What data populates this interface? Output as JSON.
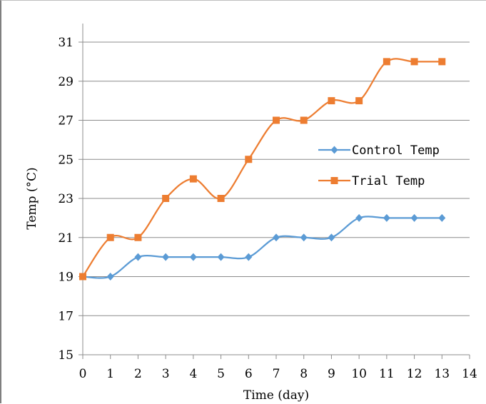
{
  "chart_data": {
    "type": "line",
    "xlabel": "Time (day)",
    "ylabel": "Temp (°C)",
    "xlim": [
      0,
      14
    ],
    "ylim": [
      15,
      31
    ],
    "xticks": [
      0,
      1,
      2,
      3,
      4,
      5,
      6,
      7,
      8,
      9,
      10,
      11,
      12,
      13,
      14
    ],
    "yticks": [
      15,
      17,
      19,
      21,
      23,
      25,
      27,
      29,
      31
    ],
    "grid": "horizontal",
    "smooth": true,
    "legend_position": "right",
    "x": [
      0,
      1,
      2,
      3,
      4,
      5,
      6,
      7,
      8,
      9,
      10,
      11,
      12,
      13
    ],
    "series": [
      {
        "name": "Control Temp",
        "color": "#5b9bd5",
        "marker": "diamond",
        "values": [
          19,
          19,
          20,
          20,
          20,
          20,
          20,
          21,
          21,
          21,
          22,
          22,
          22,
          22
        ]
      },
      {
        "name": "Trial Temp",
        "color": "#ed7d31",
        "marker": "square",
        "values": [
          19,
          21,
          21,
          23,
          24,
          23,
          25,
          27,
          27,
          28,
          28,
          30,
          30,
          30
        ]
      }
    ]
  }
}
